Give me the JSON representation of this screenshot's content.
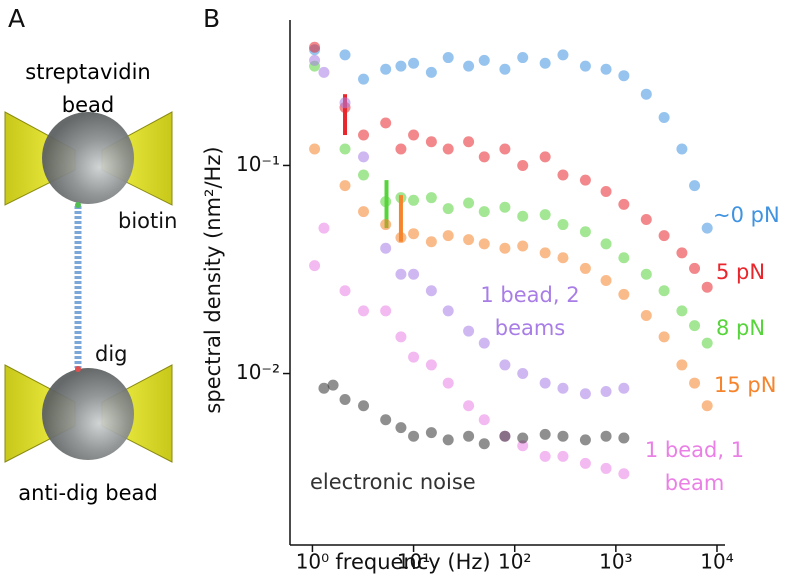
{
  "panel_labels": [
    "A",
    "B"
  ],
  "schematic": {
    "top_bead": "streptavidin bead",
    "top_link": "biotin",
    "bottom_link": "dig",
    "bottom_bead": "anti-dig bead"
  },
  "chart_data": {
    "type": "scatter",
    "xlabel": "frequency (Hz)",
    "ylabel": "spectral density (nm²/Hz)",
    "xscale": "log",
    "yscale": "log",
    "xlim": [
      0.6,
      12000
    ],
    "ylim": [
      0.0015,
      0.5
    ],
    "xticks": [
      {
        "value": 1,
        "label": "10⁰"
      },
      {
        "value": 10,
        "label": "10¹"
      },
      {
        "value": 100,
        "label": "10²"
      },
      {
        "value": 1000,
        "label": "10³"
      },
      {
        "value": 10000,
        "label": "10⁴"
      }
    ],
    "yticks": [
      {
        "value": 0.01,
        "label": "10⁻²"
      },
      {
        "value": 0.1,
        "label": "10⁻¹"
      }
    ],
    "series": [
      {
        "name": "∼0 pN",
        "color": "#3f93e0",
        "x": [
          1.05,
          2.1,
          3.2,
          5.3,
          7.5,
          10,
          15,
          22,
          35,
          50,
          80,
          120,
          200,
          300,
          500,
          800,
          1200,
          2000,
          3000,
          4500,
          6000,
          8000
        ],
        "values": [
          0.36,
          0.34,
          0.26,
          0.29,
          0.3,
          0.31,
          0.28,
          0.33,
          0.3,
          0.32,
          0.29,
          0.33,
          0.31,
          0.34,
          0.3,
          0.29,
          0.27,
          0.22,
          0.17,
          0.12,
          0.08,
          0.05
        ]
      },
      {
        "name": "5 pN",
        "color": "#e8262b",
        "x": [
          1.05,
          2.1,
          3.2,
          5.3,
          7.5,
          10,
          15,
          22,
          35,
          50,
          80,
          120,
          200,
          300,
          500,
          800,
          1200,
          2000,
          3000,
          4500,
          6000,
          8000
        ],
        "values": [
          0.37,
          0.19,
          0.14,
          0.16,
          0.12,
          0.14,
          0.13,
          0.12,
          0.13,
          0.11,
          0.12,
          0.1,
          0.11,
          0.09,
          0.085,
          0.075,
          0.065,
          0.055,
          0.046,
          0.038,
          0.032,
          0.026
        ],
        "bar": {
          "x": 2.1,
          "y": [
            0.14,
            0.22
          ]
        }
      },
      {
        "name": "8 pN",
        "color": "#57d43c",
        "x": [
          1.05,
          2.1,
          3.2,
          5.3,
          7.5,
          10,
          15,
          22,
          35,
          50,
          80,
          120,
          200,
          300,
          500,
          800,
          1200,
          2000,
          3000,
          4500,
          6000,
          8000
        ],
        "values": [
          0.3,
          0.12,
          0.09,
          0.067,
          0.07,
          0.068,
          0.07,
          0.062,
          0.066,
          0.06,
          0.063,
          0.057,
          0.058,
          0.052,
          0.048,
          0.042,
          0.036,
          0.03,
          0.025,
          0.02,
          0.017,
          0.014
        ],
        "bar": {
          "x": 5.4,
          "y": [
            0.05,
            0.085
          ]
        }
      },
      {
        "name": "15 pN",
        "color": "#f5842c",
        "x": [
          1.05,
          2.1,
          3.2,
          5.3,
          7.5,
          10,
          15,
          22,
          35,
          50,
          80,
          120,
          200,
          300,
          500,
          800,
          1200,
          2000,
          3000,
          4500,
          6000,
          8000
        ],
        "values": [
          0.12,
          0.08,
          0.06,
          0.052,
          0.045,
          0.047,
          0.043,
          0.046,
          0.044,
          0.042,
          0.04,
          0.041,
          0.038,
          0.036,
          0.032,
          0.028,
          0.024,
          0.019,
          0.015,
          0.011,
          0.009,
          0.007
        ],
        "bar": {
          "x": 7.5,
          "y": [
            0.043,
            0.072
          ]
        }
      },
      {
        "name": "1 bead, 2 beams",
        "color": "#a87de6",
        "x": [
          1.05,
          1.3,
          2.1,
          3.2,
          5.3,
          7.5,
          10,
          15,
          22,
          35,
          50,
          80,
          120,
          200,
          300,
          500,
          800,
          1200
        ],
        "values": [
          0.32,
          0.28,
          0.2,
          0.11,
          0.04,
          0.03,
          0.03,
          0.025,
          0.02,
          0.016,
          0.014,
          0.011,
          0.01,
          0.009,
          0.0085,
          0.008,
          0.0082,
          0.0085
        ]
      },
      {
        "name": "1 bead, 1 beam",
        "color": "#ea80e6",
        "x": [
          1.05,
          1.3,
          2.1,
          3.2,
          5.3,
          7.5,
          10,
          15,
          22,
          35,
          50,
          80,
          120,
          200,
          300,
          500,
          800,
          1200
        ],
        "values": [
          0.033,
          0.05,
          0.025,
          0.02,
          0.02,
          0.015,
          0.012,
          0.011,
          0.009,
          0.007,
          0.006,
          0.005,
          0.0045,
          0.004,
          0.004,
          0.0037,
          0.0035,
          0.0033
        ]
      },
      {
        "name": "electronic noise",
        "color": "#333333",
        "x": [
          1.3,
          1.6,
          2.1,
          3.2,
          5.3,
          7.5,
          10,
          15,
          22,
          35,
          50,
          80,
          120,
          200,
          300,
          500,
          800,
          1200
        ],
        "values": [
          0.0085,
          0.0088,
          0.0075,
          0.007,
          0.006,
          0.0055,
          0.005,
          0.0052,
          0.0048,
          0.005,
          0.0046,
          0.005,
          0.0049,
          0.0051,
          0.005,
          0.0048,
          0.005,
          0.0049
        ]
      }
    ]
  }
}
